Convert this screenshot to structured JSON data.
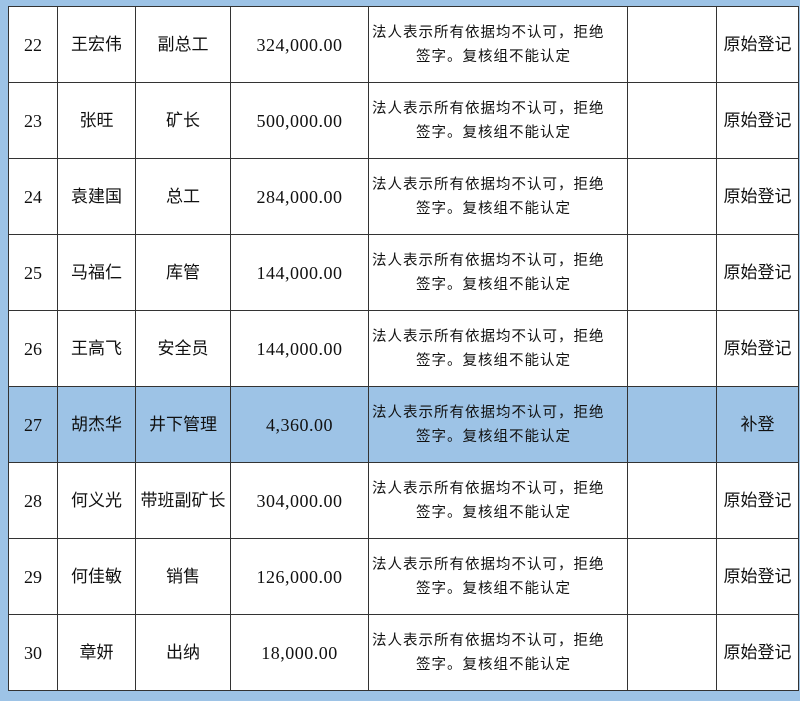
{
  "rows": [
    {
      "no": "22",
      "name": "王宏伟",
      "position": "副总工",
      "amount": "324,000.00",
      "reason_line1": "法人表示所有依据均不认可，拒绝",
      "reason_line2": "签字。复核组不能认定",
      "extra": "",
      "status": "原始登记",
      "highlighted": false
    },
    {
      "no": "23",
      "name": "张旺",
      "position": "矿长",
      "amount": "500,000.00",
      "reason_line1": "法人表示所有依据均不认可，拒绝",
      "reason_line2": "签字。复核组不能认定",
      "extra": "",
      "status": "原始登记",
      "highlighted": false
    },
    {
      "no": "24",
      "name": "袁建国",
      "position": "总工",
      "amount": "284,000.00",
      "reason_line1": "法人表示所有依据均不认可，拒绝",
      "reason_line2": "签字。复核组不能认定",
      "extra": "",
      "status": "原始登记",
      "highlighted": false
    },
    {
      "no": "25",
      "name": "马福仁",
      "position": "库管",
      "amount": "144,000.00",
      "reason_line1": "法人表示所有依据均不认可，拒绝",
      "reason_line2": "签字。复核组不能认定",
      "extra": "",
      "status": "原始登记",
      "highlighted": false
    },
    {
      "no": "26",
      "name": "王高飞",
      "position": "安全员",
      "amount": "144,000.00",
      "reason_line1": "法人表示所有依据均不认可，拒绝",
      "reason_line2": "签字。复核组不能认定",
      "extra": "",
      "status": "原始登记",
      "highlighted": false
    },
    {
      "no": "27",
      "name": "胡杰华",
      "position": "井下管理",
      "amount": "4,360.00",
      "reason_line1": "法人表示所有依据均不认可，拒绝",
      "reason_line2": "签字。复核组不能认定",
      "extra": "",
      "status": "补登",
      "highlighted": true
    },
    {
      "no": "28",
      "name": "何义光",
      "position": "带班副矿长",
      "amount": "304,000.00",
      "reason_line1": "法人表示所有依据均不认可，拒绝",
      "reason_line2": "签字。复核组不能认定",
      "extra": "",
      "status": "原始登记",
      "highlighted": false
    },
    {
      "no": "29",
      "name": "何佳敏",
      "position": "销售",
      "amount": "126,000.00",
      "reason_line1": "法人表示所有依据均不认可，拒绝",
      "reason_line2": "签字。复核组不能认定",
      "extra": "",
      "status": "原始登记",
      "highlighted": false
    },
    {
      "no": "30",
      "name": "章妍",
      "position": "出纳",
      "amount": "18,000.00",
      "reason_line1": "法人表示所有依据均不认可，拒绝",
      "reason_line2": "签字。复核组不能认定",
      "extra": "",
      "status": "原始登记",
      "highlighted": false
    }
  ],
  "colors": {
    "highlight": "#9dc3e6",
    "background": "#9dc3e6",
    "border": "#333333"
  }
}
